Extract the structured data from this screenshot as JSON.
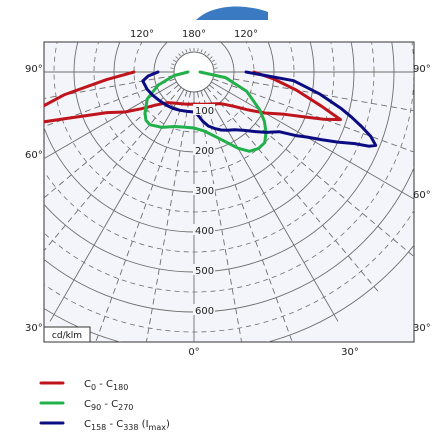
{
  "chart_data": {
    "type": "polar-photometric",
    "unit_label": "cd/klm",
    "ring_values": [
      100,
      200,
      300,
      400,
      500,
      600
    ],
    "ring_value_max": 700,
    "top_angle_labels": [
      "120°",
      "180°",
      "120°"
    ],
    "side_angle_labels": {
      "left": [
        "90°",
        "60°",
        "30°"
      ],
      "right": [
        "90°",
        "60°",
        "30°"
      ],
      "bottom": [
        "0°",
        "30°"
      ]
    },
    "grid": true,
    "legend_position": "bottom-left",
    "colors": {
      "c0": "#c0141c",
      "c90": "#22b04a",
      "c158": "#0c0c82",
      "grid": "#6e6e6e",
      "plot_bg": "#f4f5fb",
      "title_strip": "#3a7ac2"
    },
    "series": [
      {
        "name": "C0 - C180",
        "name_base": [
          "C",
          "C"
        ],
        "name_sub": [
          "0",
          "180"
        ],
        "name_suffix": "",
        "color": "#c0141c",
        "points": [
          [
            -90,
            150
          ],
          [
            -85,
            220
          ],
          [
            -80,
            330
          ],
          [
            -76,
            420
          ],
          [
            -74,
            445
          ],
          [
            -72,
            410
          ],
          [
            -70,
            340
          ],
          [
            -65,
            240
          ],
          [
            -60,
            200
          ],
          [
            -55,
            160
          ],
          [
            -50,
            130
          ],
          [
            -45,
            112
          ],
          [
            -40,
            100
          ],
          [
            -30,
            90
          ],
          [
            -20,
            85
          ],
          [
            -10,
            82
          ],
          [
            0,
            80
          ],
          [
            10,
            82
          ],
          [
            20,
            86
          ],
          [
            30,
            92
          ],
          [
            40,
            103
          ],
          [
            45,
            116
          ],
          [
            50,
            135
          ],
          [
            55,
            165
          ],
          [
            60,
            205
          ],
          [
            65,
            250
          ],
          [
            68,
            300
          ],
          [
            70,
            345
          ],
          [
            72,
            385
          ],
          [
            75,
            330
          ],
          [
            80,
            260
          ],
          [
            85,
            200
          ],
          [
            90,
            150
          ]
        ]
      },
      {
        "name": "C90 - C270",
        "name_base": [
          "C",
          "C"
        ],
        "name_sub": [
          "90",
          "270"
        ],
        "name_suffix": "",
        "color": "#22b04a",
        "points": [
          [
            -90,
            15
          ],
          [
            -80,
            50
          ],
          [
            -70,
            95
          ],
          [
            -60,
            135
          ],
          [
            -50,
            160
          ],
          [
            -45,
            170
          ],
          [
            -40,
            172
          ],
          [
            -30,
            160
          ],
          [
            -20,
            145
          ],
          [
            -10,
            140
          ],
          [
            0,
            140
          ],
          [
            10,
            150
          ],
          [
            20,
            175
          ],
          [
            30,
            220
          ],
          [
            35,
            242
          ],
          [
            40,
            250
          ],
          [
            45,
            250
          ],
          [
            50,
            235
          ],
          [
            55,
            215
          ],
          [
            60,
            190
          ],
          [
            70,
            140
          ],
          [
            80,
            80
          ],
          [
            90,
            15
          ]
        ]
      },
      {
        "name": "C158 - C338  (Imax)",
        "name_base": [
          "C",
          "C"
        ],
        "name_sub": [
          "158",
          "338"
        ],
        "name_suffix": "  (Imax)",
        "color": "#0c0c82",
        "points": [
          [
            -90,
            90
          ],
          [
            -85,
            115
          ],
          [
            -80,
            130
          ],
          [
            -70,
            125
          ],
          [
            -60,
            118
          ],
          [
            -50,
            112
          ],
          [
            -40,
            108
          ],
          [
            -30,
            105
          ],
          [
            -20,
            102
          ],
          [
            -10,
            100
          ],
          [
            0,
            100
          ],
          [
            5,
            108
          ],
          [
            10,
            125
          ],
          [
            15,
            140
          ],
          [
            20,
            150
          ],
          [
            25,
            160
          ],
          [
            30,
            168
          ],
          [
            35,
            176
          ],
          [
            40,
            190
          ],
          [
            45,
            210
          ],
          [
            50,
            235
          ],
          [
            55,
            260
          ],
          [
            58,
            300
          ],
          [
            60,
            325
          ],
          [
            62,
            360
          ],
          [
            64,
            400
          ],
          [
            66,
            440
          ],
          [
            67,
            475
          ],
          [
            68,
            490
          ],
          [
            70,
            470
          ],
          [
            72,
            440
          ],
          [
            74,
            410
          ],
          [
            76,
            380
          ],
          [
            80,
            320
          ],
          [
            85,
            250
          ],
          [
            90,
            130
          ]
        ]
      }
    ]
  }
}
